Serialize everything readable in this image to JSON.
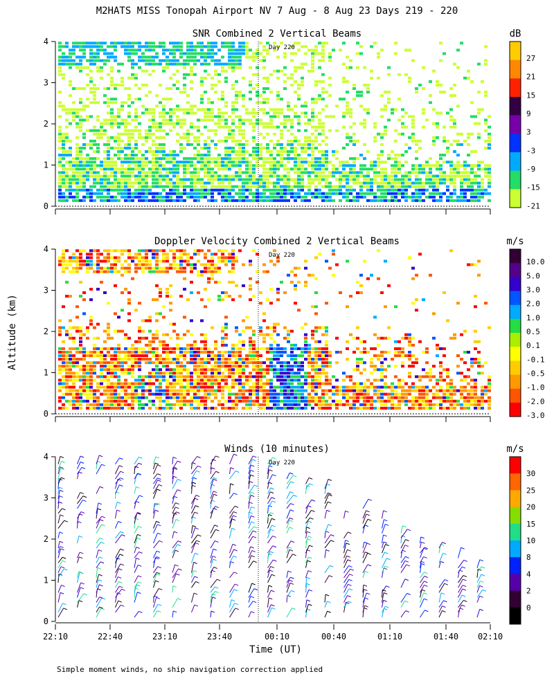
{
  "figure": {
    "title": "M2HATS MISS Tonopah Airport NV   7 Aug -  8 Aug 23 Days 219 - 220",
    "y_label": "Altitude (km)",
    "x_label": "Time (UT)",
    "footnote": "Simple moment winds, no ship navigation correction applied",
    "day_marker_label": "Day 220"
  },
  "chart_data": [
    {
      "type": "heatmap",
      "title": "SNR Combined 2 Vertical Beams",
      "unit": "dB",
      "ylim": [
        0,
        4
      ],
      "y_ticks": [
        "0",
        "1",
        "2",
        "3",
        "4"
      ],
      "colorbar_labels": [
        "27",
        "21",
        "15",
        "9",
        "3",
        "-3",
        "-9",
        "-15",
        "-21"
      ],
      "colorbar_colors": [
        "#ffcc00",
        "#ff8800",
        "#ff2200",
        "#330044",
        "#7700aa",
        "#0033ff",
        "#00aaff",
        "#22dd66",
        "#ccff33"
      ],
      "description_values": {
        "min": -21,
        "max": 27
      }
    },
    {
      "type": "heatmap",
      "title": "Doppler Velocity Combined 2 Vertical Beams",
      "unit": "m/s",
      "ylim": [
        0,
        4
      ],
      "y_ticks": [
        "0",
        "1",
        "2",
        "3",
        "4"
      ],
      "colorbar_labels": [
        "10.0",
        "5.0",
        "3.0",
        "2.0",
        "1.0",
        "0.5",
        "0.1",
        "-0.1",
        "-0.5",
        "-1.0",
        "-2.0",
        "-3.0"
      ],
      "colorbar_colors": [
        "#330033",
        "#550088",
        "#3300cc",
        "#0055ff",
        "#00aaff",
        "#22dd44",
        "#aaee00",
        "#ffff00",
        "#ffcc00",
        "#ff9900",
        "#ff5500",
        "#ff0000"
      ]
    },
    {
      "type": "scatter",
      "title": "Winds (10 minutes)",
      "unit": "m/s",
      "ylim": [
        0,
        4
      ],
      "y_ticks": [
        "0",
        "1",
        "2",
        "3",
        "4"
      ],
      "x_ticks": [
        "22:10",
        "22:40",
        "23:10",
        "23:40",
        "00:10",
        "00:40",
        "01:10",
        "01:40",
        "02:10"
      ],
      "colorbar_labels": [
        "30",
        "25",
        "20",
        "15",
        "10",
        "8",
        "4",
        "2",
        "0"
      ],
      "colorbar_colors": [
        "#ff0000",
        "#ff6600",
        "#ffaa00",
        "#88dd00",
        "#22dd88",
        "#00aaff",
        "#0022ff",
        "#5500aa",
        "#330033",
        "#000000"
      ]
    }
  ],
  "colors": {
    "axis": "#000000",
    "background": "#ffffff"
  }
}
